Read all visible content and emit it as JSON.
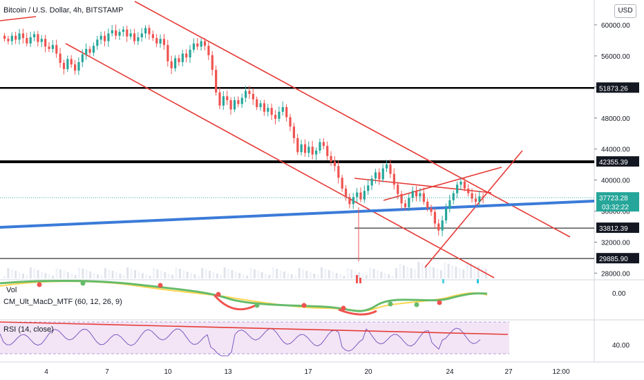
{
  "header": {
    "symbol_title": "Bitcoin / U.S. Dollar, 4h, BITSTAMP",
    "currency_button": "USD"
  },
  "indicators": {
    "volume_label": "Vol",
    "macd_label": "CM_Ult_MacD_MTF (60, 12, 26, 9)",
    "rsi_label": "RSI (14, close)",
    "macd_axis_value": "0.00",
    "rsi_axis_value": "40.00"
  },
  "price_axis": {
    "ticks": [
      "60000.00",
      "56000.00",
      "52000.00",
      "48000.00",
      "44000.00",
      "40000.00",
      "36000.00",
      "32000.00",
      "28000.00"
    ]
  },
  "price_markers": [
    {
      "value": "51873.26",
      "kind": "level"
    },
    {
      "value": "42355.39",
      "kind": "level"
    },
    {
      "value": "37723.28",
      "kind": "last"
    },
    {
      "value": "33812.39",
      "kind": "level"
    },
    {
      "value": "29885.90",
      "kind": "level"
    }
  ],
  "countdown": "03:32:22",
  "time_axis": {
    "ticks": [
      "4",
      "7",
      "10",
      "13",
      "17",
      "20",
      "24",
      "27",
      "12:00"
    ]
  },
  "colors": {
    "up_candle": "#26a69a",
    "down_candle": "#ef5350",
    "trend_line": "#e53935",
    "blue_trend": "#3b7bd8",
    "level_line": "#000000",
    "last_price": "#26a69a",
    "rsi_line": "#7e57c2",
    "rsi_band": "#f3e5f5"
  },
  "chart_data": {
    "type": "candlestick",
    "title": "Bitcoin / U.S. Dollar, 4h, BITSTAMP",
    "ylabel": "USD",
    "ylim": [
      26500,
      63000
    ],
    "horizontal_levels": [
      51873.26,
      42355.39,
      33812.39,
      29885.9
    ],
    "last_price": 37723.28,
    "series": [
      {
        "name": "BTC/USD",
        "values": [
          58200,
          57900,
          58600,
          58100,
          58900,
          58300,
          57600,
          58400,
          58800,
          57800,
          58200,
          57200,
          56900,
          57400,
          56300,
          55100,
          54300,
          55600,
          54900,
          54100,
          55200,
          56200,
          56900,
          56400,
          57300,
          58100,
          58600,
          57900,
          58900,
          59300,
          58600,
          59100,
          59400,
          58500,
          58900,
          57900,
          58400,
          58900,
          59600,
          58800,
          58300,
          57600,
          58200,
          57400,
          55300,
          54400,
          55700,
          55200,
          56300,
          55800,
          56800,
          57600,
          57200,
          57900,
          57300,
          56100,
          54200,
          51300,
          49600,
          50800,
          50300,
          49100,
          50300,
          49800,
          50600,
          51500,
          51100,
          50400,
          49400,
          49900,
          48800,
          49300,
          48400,
          47900,
          48800,
          49400,
          48100,
          46900,
          45400,
          43600,
          44600,
          43500,
          44300,
          43300,
          43800,
          44900,
          44400,
          43100,
          42400,
          41800,
          40300,
          38900,
          37800,
          36900,
          37800,
          38400,
          37500,
          38600,
          39300,
          40200,
          41000,
          40100,
          41500,
          42000,
          40800,
          39400,
          38200,
          37000,
          36500,
          37700,
          38600,
          37900,
          38300,
          37200,
          36400,
          35900,
          34400,
          33500,
          34800,
          36300,
          37400,
          38300,
          39400,
          39800,
          38900,
          38300,
          37600,
          37200,
          37900,
          37700
        ]
      }
    ]
  }
}
